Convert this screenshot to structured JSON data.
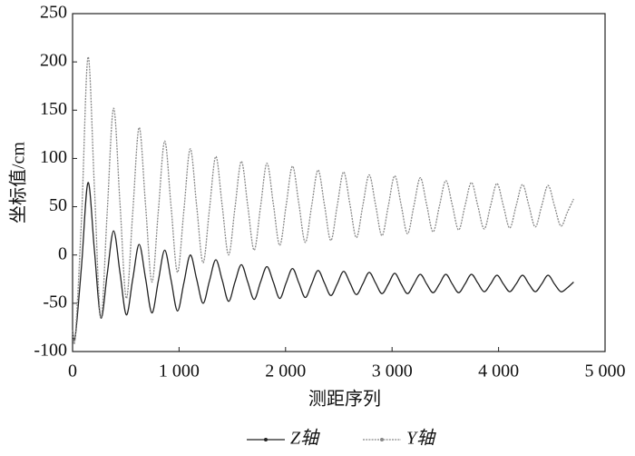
{
  "chart_data": {
    "type": "line",
    "x_label": "测距序列",
    "y_label": "坐标值/cm",
    "xlim": [
      0,
      5000
    ],
    "ylim": [
      -100,
      250
    ],
    "xticks": [
      0,
      {
        "value": 1000,
        "label": "1 000"
      },
      {
        "value": 2000,
        "label": "2 000"
      },
      {
        "value": 3000,
        "label": "3 000"
      },
      {
        "value": 4000,
        "label": "4 000"
      },
      {
        "value": 5000,
        "label": "5 000"
      }
    ],
    "yticks": [
      -100,
      -50,
      0,
      50,
      100,
      150,
      200,
      250
    ],
    "x": [
      0,
      25,
      85,
      145,
      205,
      265,
      325,
      385,
      445,
      505,
      565,
      625,
      685,
      745,
      805,
      865,
      925,
      985,
      1045,
      1105,
      1165,
      1225,
      1285,
      1345,
      1405,
      1465,
      1525,
      1585,
      1645,
      1705,
      1765,
      1825,
      1885,
      1945,
      2005,
      2065,
      2125,
      2185,
      2245,
      2305,
      2365,
      2425,
      2485,
      2545,
      2605,
      2665,
      2725,
      2785,
      2845,
      2905,
      2965,
      3025,
      3085,
      3145,
      3205,
      3265,
      3325,
      3385,
      3445,
      3505,
      3565,
      3625,
      3685,
      3745,
      3805,
      3865,
      3925,
      3985,
      4045,
      4105,
      4165,
      4225,
      4285,
      4345,
      4405,
      4465,
      4525,
      4585,
      4645,
      4705
    ],
    "series": [
      {
        "name": "Z轴",
        "color": "#222222",
        "values": [
          -78,
          -85,
          -10,
          75,
          5,
          -65,
          -20,
          25,
          -18,
          -62,
          -25,
          11,
          -24,
          -60,
          -27,
          5,
          -26,
          -58,
          -29,
          0,
          -25,
          -50,
          -27,
          -5,
          -26,
          -48,
          -28,
          -10,
          -28,
          -46,
          -28,
          -12,
          -28,
          -45,
          -29,
          -14,
          -29,
          -44,
          -30,
          -16,
          -29,
          -42,
          -30,
          -17,
          -29,
          -41,
          -30,
          -18,
          -29,
          -40,
          -30,
          -19,
          -30,
          -40,
          -30,
          -20,
          -30,
          -39,
          -30,
          -20,
          -30,
          -39,
          -30,
          -20,
          -29,
          -38,
          -30,
          -21,
          -30,
          -38,
          -30,
          -21,
          -30,
          -38,
          -30,
          -21,
          -30,
          -38,
          -34,
          -28
        ]
      },
      {
        "name": "Y轴",
        "color": "#888888",
        "values": [
          -78,
          -85,
          40,
          205,
          70,
          -65,
          44,
          152,
          54,
          -45,
          44,
          132,
          52,
          -28,
          45,
          118,
          50,
          -18,
          46,
          110,
          51,
          -8,
          47,
          102,
          51,
          0,
          49,
          97,
          51,
          5,
          50,
          95,
          53,
          10,
          51,
          92,
          53,
          13,
          51,
          88,
          52,
          15,
          51,
          86,
          52,
          18,
          51,
          83,
          52,
          20,
          51,
          82,
          52,
          22,
          51,
          80,
          52,
          24,
          51,
          77,
          52,
          26,
          51,
          75,
          51,
          27,
          51,
          74,
          51,
          28,
          51,
          73,
          51,
          29,
          51,
          72,
          51,
          30,
          44,
          58
        ]
      }
    ]
  }
}
